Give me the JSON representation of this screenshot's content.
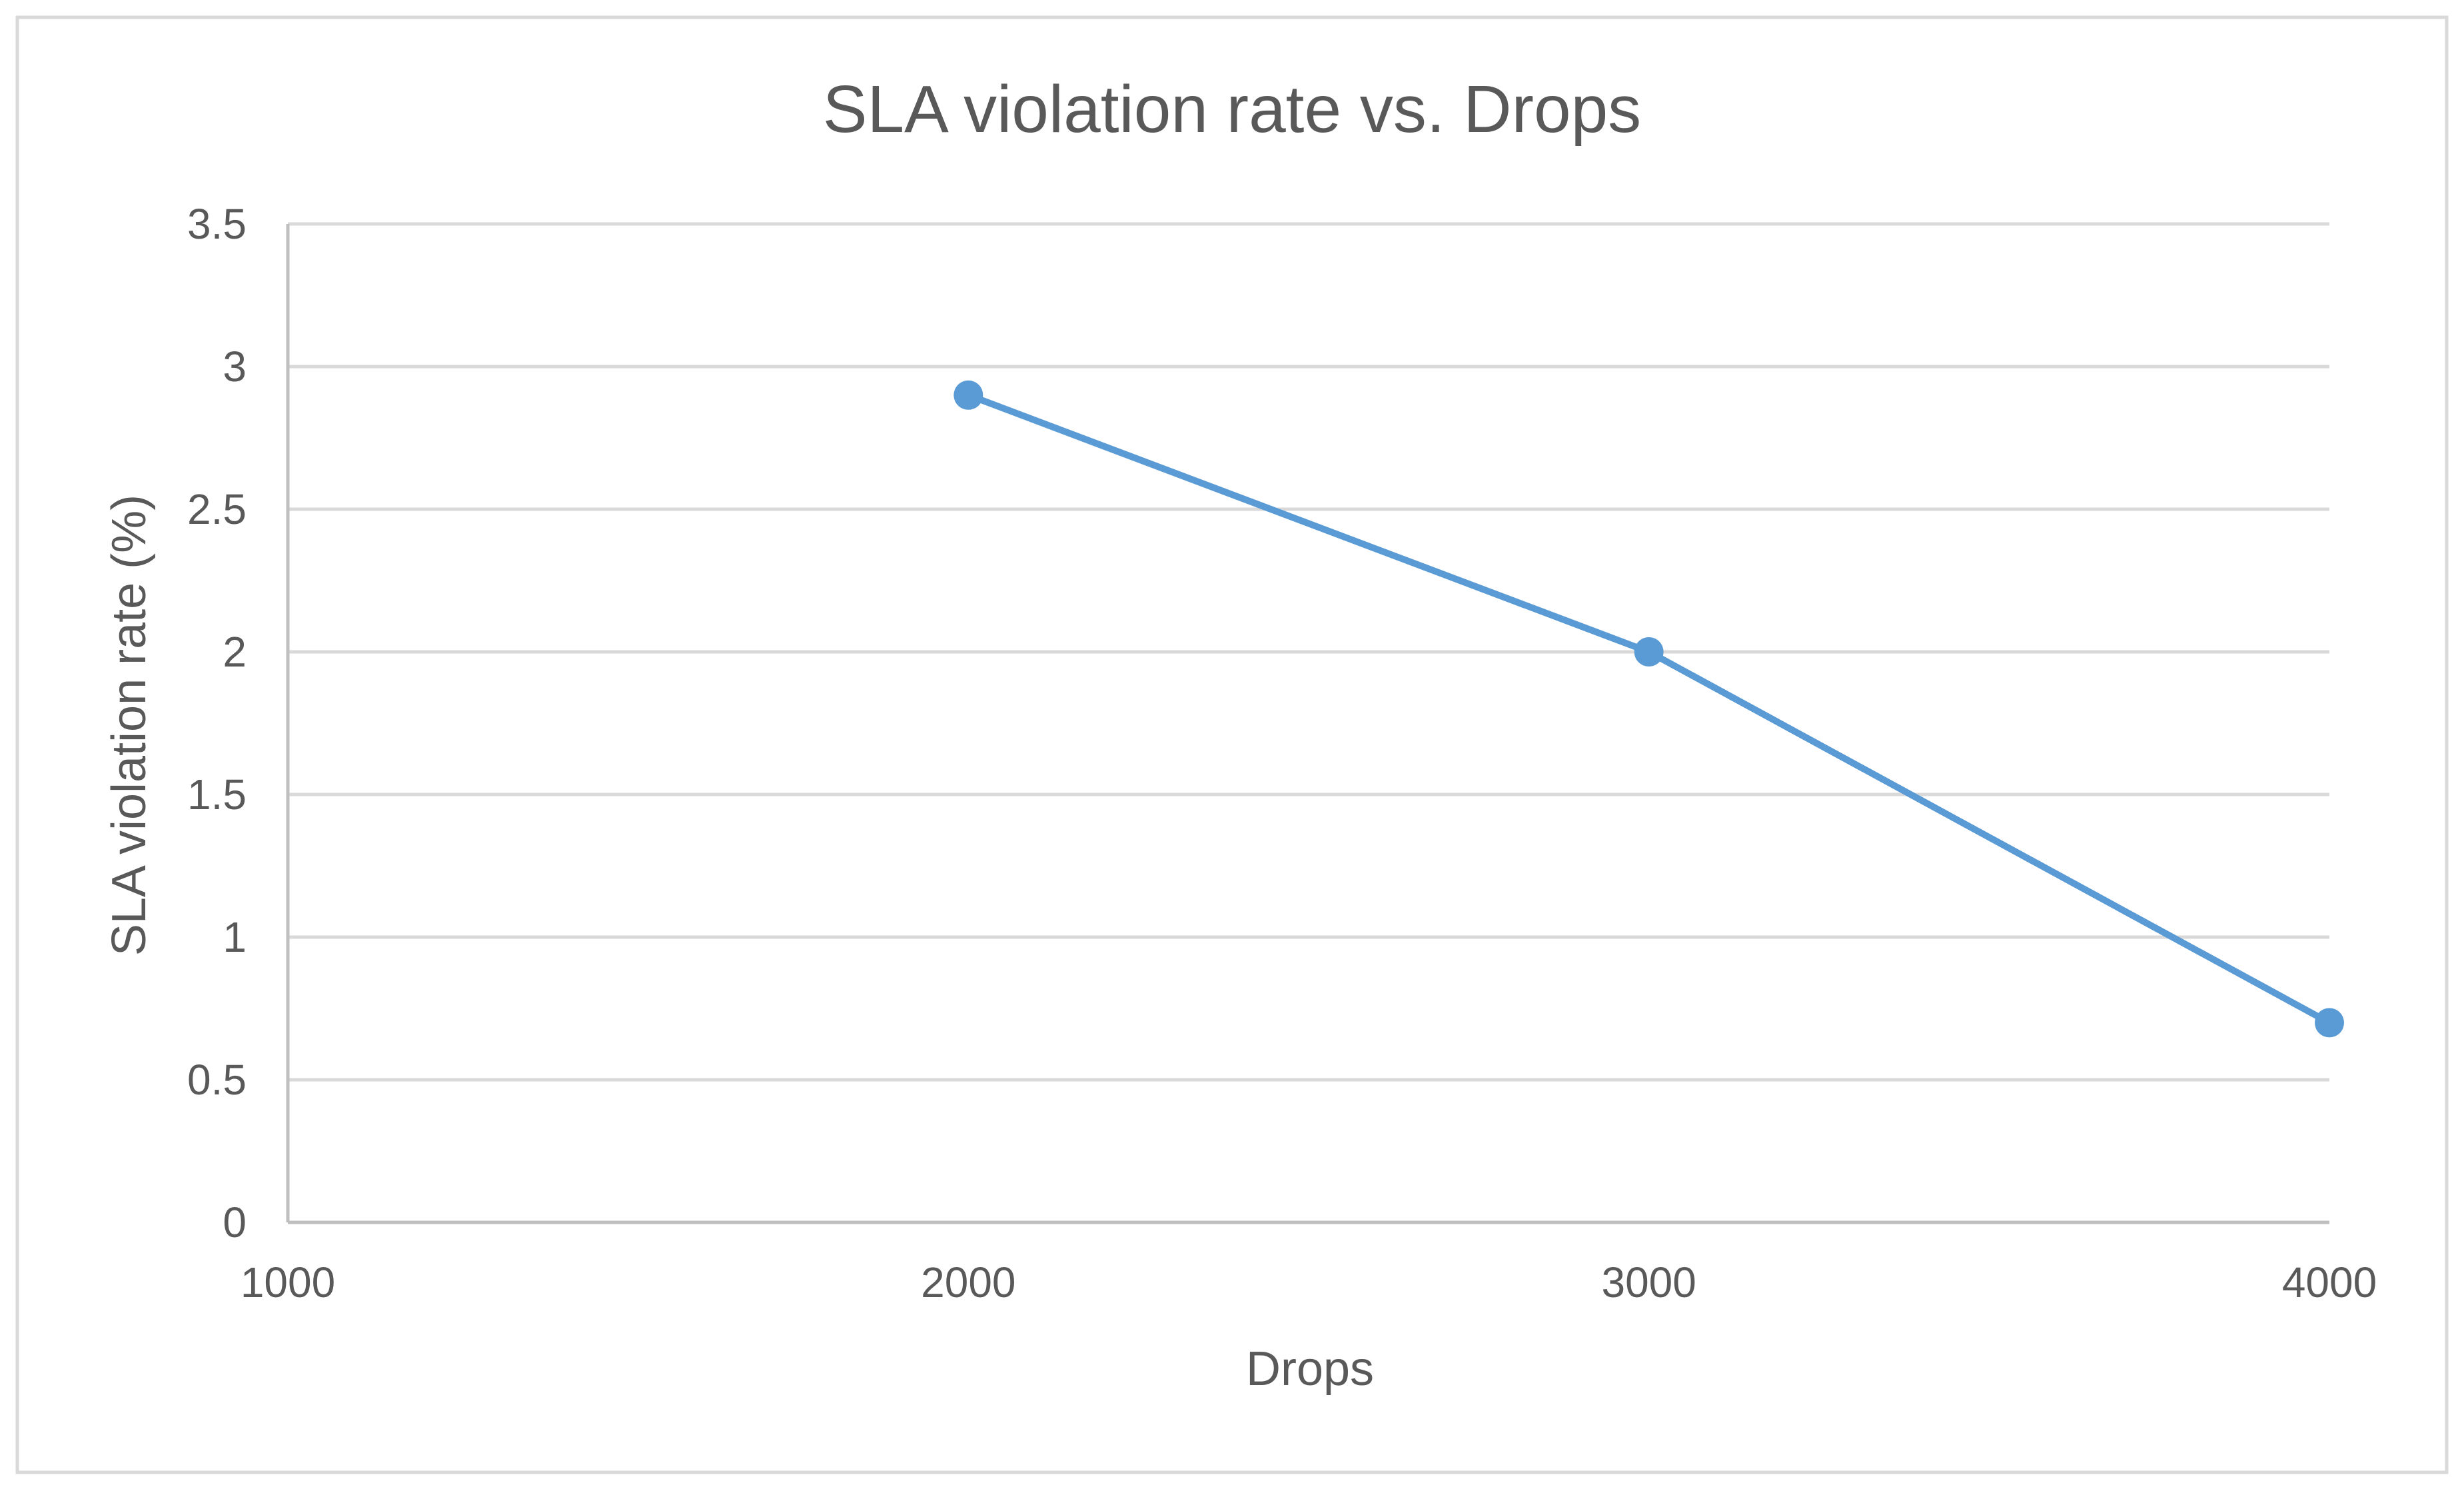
{
  "chart_data": {
    "type": "line",
    "title": "SLA violation rate vs. Drops",
    "xlabel": "Drops",
    "ylabel": "SLA violation rate (%)",
    "xlim": [
      1000,
      4000
    ],
    "ylim": [
      0,
      3.5
    ],
    "x_ticks": [
      "1000",
      "2000",
      "3000",
      "4000"
    ],
    "x_tick_values": [
      1000,
      2000,
      3000,
      4000
    ],
    "y_ticks": [
      "0",
      "0.5",
      "1",
      "1.5",
      "2",
      "2.5",
      "3",
      "3.5"
    ],
    "y_tick_values": [
      0,
      0.5,
      1,
      1.5,
      2,
      2.5,
      3,
      3.5
    ],
    "grid": true,
    "legend": "none",
    "series": [
      {
        "name": "SLA violation rate",
        "color": "#5b9bd5",
        "x": [
          2000,
          3000,
          4000
        ],
        "values": [
          2.9,
          2.0,
          0.7
        ]
      }
    ]
  }
}
